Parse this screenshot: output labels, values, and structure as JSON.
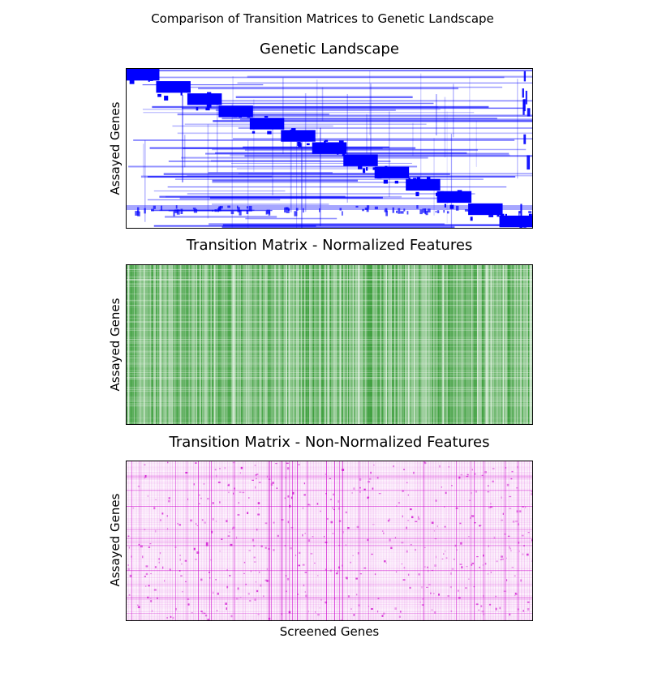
{
  "figure": {
    "suptitle": "Comparison of Transition Matrices to Genetic Landscape",
    "xlabel": "Screened Genes"
  },
  "chart_data": [
    {
      "type": "heatmap",
      "title": "Genetic Landscape",
      "xlabel": "",
      "ylabel": "Assayed Genes",
      "color": "#0000ff",
      "pattern": "block-diagonal",
      "diagonal_blocks": 13,
      "xticks": [],
      "yticks": []
    },
    {
      "type": "heatmap",
      "title": "Transition Matrix - Normalized Features",
      "xlabel": "",
      "ylabel": "Assayed Genes",
      "color": "#008000",
      "pattern": "dense vertical striping",
      "xticks": [],
      "yticks": []
    },
    {
      "type": "heatmap",
      "title": "Transition Matrix - Non-Normalized Features",
      "xlabel": "Screened Genes",
      "ylabel": "Assayed Genes",
      "color": "#cc00cc",
      "pattern": "sparse grid",
      "xticks": [],
      "yticks": []
    }
  ]
}
